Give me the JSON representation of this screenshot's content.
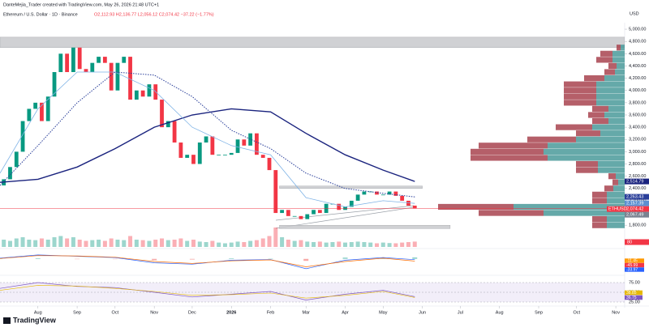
{
  "chart_data": {
    "type": "candlestick",
    "credit": "DanteMejia_Trader created with TradingView.com, May 26, 2026 21:48 UTC+1",
    "symbol": "Ethereum / U.S. Dollar · 1D · Binance",
    "ohlc": "O2,112.93 H2,136.77 L2,056.12 C2,074.42 −37.22 (−1.77%)",
    "currency": "USD",
    "logo": "TradingView",
    "xlim": [
      1,
      495
    ],
    "xticks": [
      {
        "value": 31,
        "label": "Aug"
      },
      {
        "value": 62,
        "label": "Sep"
      },
      {
        "value": 92,
        "label": "Oct"
      },
      {
        "value": 123,
        "label": "Nov"
      },
      {
        "value": 153,
        "label": "Dec"
      },
      {
        "value": 184,
        "label": "2026"
      },
      {
        "value": 215,
        "label": "Feb"
      },
      {
        "value": 243,
        "label": "Mar"
      },
      {
        "value": 274,
        "label": "Apr"
      },
      {
        "value": 304,
        "label": "May"
      },
      {
        "value": 335,
        "label": "Jun"
      },
      {
        "value": 365,
        "label": "Jul"
      },
      {
        "value": 396,
        "label": "Aug"
      },
      {
        "value": 427,
        "label": "Sep"
      },
      {
        "value": 457,
        "label": "Oct"
      },
      {
        "value": 488,
        "label": "Nov"
      }
    ],
    "ylim": [
      1710,
      5080
    ],
    "yticks": [
      {
        "value": 5000,
        "label": "5,000.00"
      },
      {
        "value": 4800,
        "label": "4,800.00"
      },
      {
        "value": 4600,
        "label": "4,600.00"
      },
      {
        "value": 4400,
        "label": "4,400.00"
      },
      {
        "value": 4200,
        "label": "4,200.00"
      },
      {
        "value": 4000,
        "label": "4,000.00"
      },
      {
        "value": 3800,
        "label": "3,800.00"
      },
      {
        "value": 3600,
        "label": "3,600.00"
      },
      {
        "value": 3400,
        "label": "3,400.00"
      },
      {
        "value": 3200,
        "label": "3,200.00"
      },
      {
        "value": 3000,
        "label": "3,000.00"
      },
      {
        "value": 2800,
        "label": "2,800.00"
      },
      {
        "value": 2600,
        "label": "2,600.00"
      },
      {
        "value": 2400,
        "label": "2,400.00"
      },
      {
        "value": 2200,
        "label": "2,200.00"
      },
      {
        "value": 2000,
        "label": "2,000.00"
      },
      {
        "value": 1800,
        "label": "1,800.00"
      }
    ],
    "up_color": "#089981",
    "down_color": "#f23645",
    "candles": {
      "x": [
        4,
        9,
        14,
        19,
        24,
        29,
        34,
        39,
        44,
        49,
        54,
        59,
        64,
        69,
        74,
        79,
        84,
        89,
        94,
        99,
        104,
        109,
        114,
        119,
        124,
        129,
        134,
        139,
        144,
        149,
        154,
        159,
        164,
        169,
        174,
        179,
        184,
        189,
        194,
        199,
        204,
        209,
        214,
        219,
        224,
        229,
        234,
        239,
        244,
        249,
        254,
        259,
        264,
        269,
        274,
        279,
        284,
        289,
        294,
        299,
        304,
        309,
        314,
        319,
        324,
        329
      ],
      "open": [
        2450,
        2550,
        2750,
        3000,
        3500,
        3700,
        3800,
        3500,
        3900,
        4300,
        4600,
        4300,
        4700,
        4350,
        4300,
        4450,
        4550,
        4450,
        4000,
        4450,
        4550,
        3850,
        4000,
        3900,
        4100,
        3850,
        3400,
        3500,
        3150,
        2900,
        2950,
        2800,
        3150,
        3250,
        2950,
        2950,
        2950,
        2980,
        3200,
        3100,
        3300,
        2950,
        2900,
        2700,
        2000,
        2050,
        1950,
        1950,
        1900,
        1980,
        2050,
        2000,
        2150,
        2150,
        2050,
        2100,
        2200,
        2300,
        2350,
        2350,
        2300,
        2300,
        2350,
        2280,
        2200,
        2120
      ],
      "close": [
        2550,
        2750,
        3000,
        3500,
        3700,
        3800,
        3500,
        3900,
        4300,
        4600,
        4300,
        4700,
        4350,
        4300,
        4450,
        4550,
        4450,
        4000,
        4450,
        4550,
        3850,
        4000,
        3900,
        4100,
        3850,
        3400,
        3500,
        3150,
        2900,
        2950,
        2800,
        3150,
        3250,
        2950,
        2950,
        2950,
        2980,
        3200,
        3100,
        3300,
        2950,
        2900,
        2700,
        2000,
        2050,
        1950,
        1950,
        1900,
        1980,
        2050,
        2000,
        2150,
        2150,
        2050,
        2100,
        2200,
        2300,
        2350,
        2350,
        2300,
        2300,
        2350,
        2280,
        2200,
        2120,
        2074.42
      ],
      "volume": [
        30,
        25,
        35,
        40,
        30,
        28,
        35,
        30,
        40,
        45,
        35,
        40,
        30,
        25,
        28,
        30,
        25,
        35,
        30,
        28,
        45,
        30,
        28,
        25,
        30,
        35,
        28,
        30,
        35,
        25,
        30,
        22,
        20,
        25,
        18,
        15,
        18,
        22,
        20,
        25,
        28,
        35,
        45,
        80,
        40,
        30,
        25,
        28,
        22,
        20,
        22,
        18,
        20,
        22,
        18,
        20,
        22,
        20,
        18,
        15,
        18,
        16,
        15,
        18,
        20,
        22
      ]
    },
    "volume_ylim": [
      0,
      100
    ],
    "volume_tag": 80,
    "averages": {
      "x": [
        1,
        31,
        62,
        92,
        123,
        153,
        184,
        215,
        243,
        274,
        304,
        329
      ],
      "series": [
        {
          "color": "#1a237e",
          "width": 1.4,
          "values": [
            2500,
            2550,
            2750,
            3050,
            3400,
            3600,
            3700,
            3650,
            3300,
            2950,
            2700,
            2515
          ]
        },
        {
          "color": "#7fb3e6",
          "width": 0.8,
          "values": [
            2650,
            3700,
            4300,
            4300,
            4000,
            3400,
            3100,
            2950,
            2250,
            2100,
            2200,
            2157
          ]
        },
        {
          "color": "#2a3f9a",
          "width": 1,
          "dash": true,
          "values": [
            2450,
            3100,
            3800,
            4300,
            4250,
            3900,
            3350,
            3050,
            2650,
            2400,
            2320,
            2263
          ]
        }
      ]
    },
    "zones": [
      {
        "from": 4700,
        "to": 4870,
        "x": [
          1,
          495
        ]
      },
      {
        "from": 2400,
        "to": 2440,
        "x": [
          222,
          335
        ]
      },
      {
        "from": 1745,
        "to": 1800,
        "x": [
          222,
          357
        ]
      }
    ],
    "volume_profile": {
      "levels": [
        1800,
        1900,
        2000,
        2100,
        2200,
        2300,
        2400,
        2500,
        2600,
        2700,
        2800,
        2900,
        3000,
        3100,
        3200,
        3300,
        3400,
        3500,
        3600,
        3700,
        3800,
        3900,
        4000,
        4100,
        4200,
        4300,
        4400,
        4500,
        4600,
        4700
      ],
      "up": [
        22,
        22,
        100,
        137,
        22,
        22,
        14,
        8,
        11,
        33,
        33,
        95,
        100,
        95,
        60,
        30,
        40,
        20,
        25,
        20,
        35,
        35,
        35,
        35,
        25,
        12,
        10,
        15,
        15,
        5
      ],
      "down": [
        18,
        18,
        80,
        93,
        18,
        18,
        11,
        7,
        9,
        27,
        27,
        95,
        90,
        85,
        60,
        30,
        45,
        20,
        20,
        20,
        40,
        40,
        40,
        40,
        25,
        13,
        10,
        20,
        15,
        5
      ],
      "up_color": "#4a9a9a",
      "down_color": "#a8434f"
    },
    "price_tags": [
      {
        "value": 2514.79,
        "label": "2,514.79",
        "color": "#1a237e"
      },
      {
        "value": 2263.43,
        "label": "2,263.43",
        "color": "#2a3f9a"
      },
      {
        "value": 2157.39,
        "label": "2,157.39",
        "color": "#5b8fd0"
      },
      {
        "value": 2074.42,
        "label": "2,074.42",
        "color": "#f23645"
      },
      {
        "value": 2067.49,
        "label": "2,067.49",
        "color": "#7a8391"
      }
    ],
    "symbol_tag": "ETHUSD",
    "macd": {
      "x": [
        1,
        31,
        62,
        92,
        123,
        153,
        184,
        215,
        243,
        274,
        304,
        329
      ],
      "ylim": [
        -200,
        120
      ],
      "macd": [
        10,
        60,
        40,
        20,
        -60,
        -80,
        -20,
        -10,
        -150,
        -20,
        20,
        -11.45
      ],
      "signal": [
        5,
        50,
        45,
        25,
        -40,
        -70,
        -30,
        -15,
        -120,
        -40,
        10,
        -33.97
      ],
      "tags": [
        {
          "value": -11.45,
          "color": "#ff9800"
        },
        {
          "value": -45.99,
          "color": "#f23645"
        },
        {
          "value": -33.97,
          "color": "#2962ff"
        }
      ]
    },
    "rsi": {
      "x": [
        1,
        31,
        62,
        92,
        123,
        153,
        184,
        215,
        243,
        274,
        304,
        329
      ],
      "ylim": [
        15,
        85
      ],
      "yticks": [
        {
          "value": 75,
          "label": "75.00"
        },
        {
          "value": 50,
          "label": "50.00"
        },
        {
          "value": 25,
          "label": "25.00"
        }
      ],
      "rsi": [
        60,
        75,
        65,
        62,
        50,
        38,
        45,
        52,
        30,
        45,
        55,
        38.85
      ],
      "ma": [
        55,
        68,
        66,
        60,
        52,
        42,
        44,
        48,
        35,
        42,
        52,
        36.75
      ],
      "tags": [
        {
          "value": 38.85,
          "color": "#e6b800"
        },
        {
          "value": 36.75,
          "color": "#7e57c2"
        }
      ]
    }
  }
}
